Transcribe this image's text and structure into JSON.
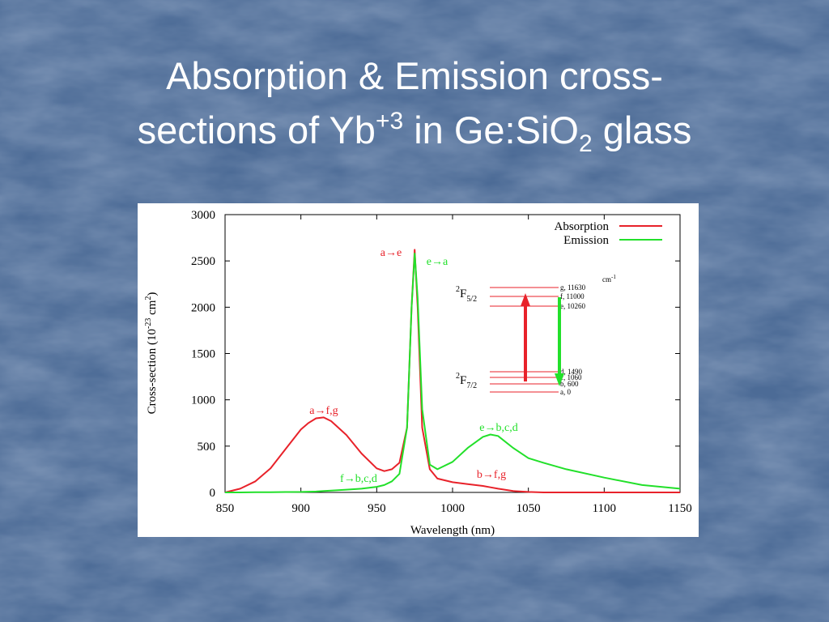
{
  "slide": {
    "title": {
      "line1": "Absorption & Emission cross-",
      "line2": [
        "sections of Yb",
        "+3",
        " in Ge:SiO",
        "2",
        " glass"
      ]
    }
  },
  "chart_data": {
    "type": "line",
    "xlabel": "Wavelength (nm)",
    "ylabel": [
      "Cross-section (10",
      "-23",
      " cm",
      "2",
      ")"
    ],
    "xlim": [
      850,
      1150
    ],
    "xticks": [
      850,
      900,
      950,
      1000,
      1050,
      1100,
      1150
    ],
    "ylim": [
      0,
      3000
    ],
    "yticks": [
      0,
      500,
      1000,
      1500,
      2000,
      2500,
      3000
    ],
    "legend": "upper right",
    "x": [
      850,
      860,
      870,
      880,
      890,
      900,
      905,
      910,
      915,
      920,
      930,
      940,
      950,
      955,
      960,
      965,
      970,
      973,
      975,
      977,
      980,
      985,
      990,
      1000,
      1010,
      1020,
      1025,
      1030,
      1040,
      1050,
      1060,
      1075,
      1100,
      1125,
      1150
    ],
    "series": [
      {
        "name": "Absorption",
        "color": "#e8222a",
        "values": [
          0,
          40,
          120,
          260,
          470,
          680,
          750,
          800,
          810,
          770,
          620,
          420,
          260,
          230,
          250,
          320,
          700,
          2000,
          2620,
          2000,
          700,
          250,
          150,
          110,
          90,
          70,
          55,
          40,
          15,
          5,
          0,
          0,
          0,
          0,
          0
        ]
      },
      {
        "name": "Emission",
        "color": "#22e02a",
        "values": [
          0,
          0,
          2,
          3,
          4,
          5,
          8,
          10,
          15,
          20,
          30,
          40,
          60,
          80,
          120,
          200,
          700,
          2000,
          2580,
          2100,
          900,
          300,
          250,
          330,
          480,
          600,
          625,
          610,
          480,
          370,
          320,
          250,
          160,
          80,
          40
        ]
      }
    ],
    "annotations": [
      {
        "text": "a→e",
        "color": "#e8222a"
      },
      {
        "text": "e→a",
        "color": "#22e02a"
      },
      {
        "text": "a→f,g",
        "color": "#e8222a"
      },
      {
        "text": "f→b,c,d",
        "color": "#22e02a"
      },
      {
        "text": "e→b,c,d",
        "color": "#22e02a"
      },
      {
        "text": "b→f,g",
        "color": "#e8222a"
      }
    ],
    "inset": {
      "unit": [
        "cm",
        "-1"
      ],
      "upper_term": [
        "2",
        "F",
        "5/2"
      ],
      "lower_term": [
        "2",
        "F",
        "7/2"
      ],
      "levels": [
        "g, 11630",
        "f, 11000",
        "e, 10260",
        "d, 1490",
        "c, 1060",
        "b, 600",
        "a, 0"
      ]
    }
  }
}
